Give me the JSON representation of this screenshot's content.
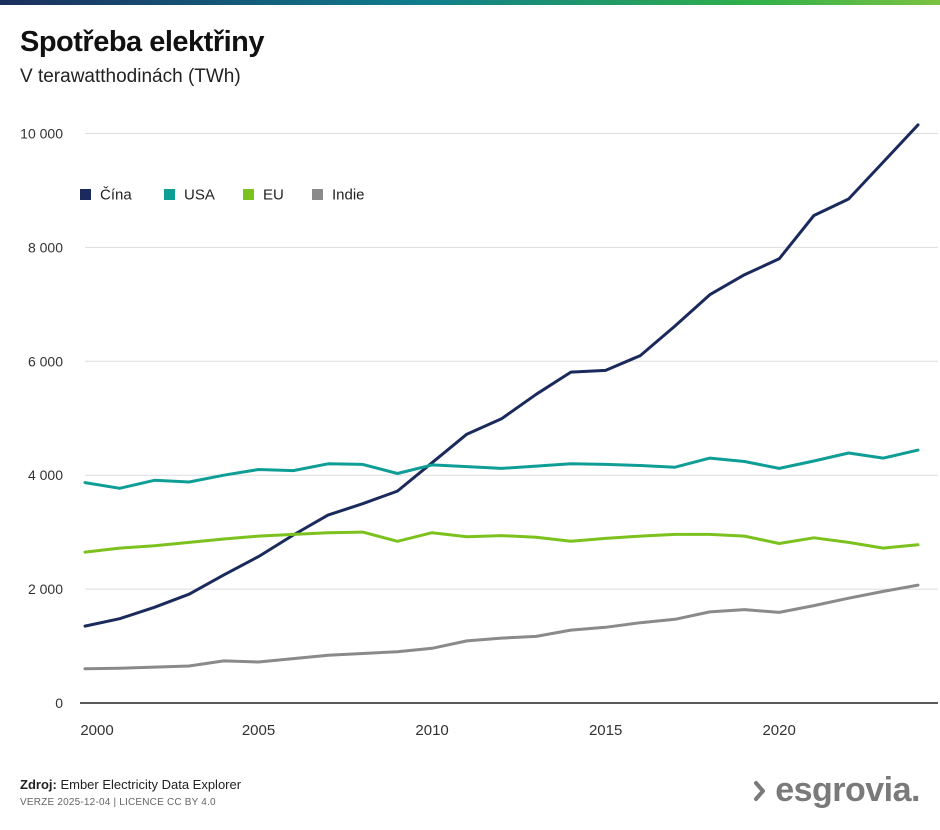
{
  "header": {
    "title": "Spotřeba elektřiny",
    "subtitle": "V terawatthodinách (TWh)"
  },
  "footer": {
    "source_label": "Zdroj:",
    "source_text": "Ember Electricity Data Explorer",
    "version": "VERZE 2025-12-04 | LICENCE CC BY 4.0",
    "brand": "esgrovia."
  },
  "colors": {
    "china": "#1b2a5c",
    "usa": "#0f9e96",
    "eu": "#7cc21e",
    "india": "#8a8a8a",
    "grid": "#dddddd",
    "axis": "#222222",
    "tick_text": "#333333"
  },
  "chart_data": {
    "type": "line",
    "title": "Spotřeba elektřiny",
    "ylabel": "V terawatthodinách (TWh)",
    "xlabel": "",
    "xlim": [
      2000,
      2024
    ],
    "ylim": [
      0,
      10500
    ],
    "x_ticks": [
      2000,
      2005,
      2010,
      2015,
      2020
    ],
    "x_tick_labels": [
      "2000",
      "2005",
      "2010",
      "2015",
      "2020"
    ],
    "y_ticks": [
      0,
      2000,
      4000,
      6000,
      8000,
      10000
    ],
    "y_tick_labels": [
      "0",
      "2 000",
      "4 000",
      "6 000",
      "8 000",
      "10 000"
    ],
    "legend_position": "top-left",
    "grid": true,
    "x": [
      2000,
      2001,
      2002,
      2003,
      2004,
      2005,
      2006,
      2007,
      2008,
      2009,
      2010,
      2011,
      2012,
      2013,
      2014,
      2015,
      2016,
      2017,
      2018,
      2019,
      2020,
      2021,
      2022,
      2023,
      2024
    ],
    "series": [
      {
        "name": "Čína",
        "key": "china",
        "values": [
          1350,
          1480,
          1680,
          1910,
          2250,
          2570,
          2950,
          3300,
          3500,
          3720,
          4220,
          4720,
          4990,
          5420,
          5810,
          5840,
          6100,
          6620,
          7170,
          7520,
          7800,
          8560,
          8850,
          9500,
          10150
        ]
      },
      {
        "name": "USA",
        "key": "usa",
        "values": [
          3870,
          3770,
          3910,
          3880,
          4000,
          4100,
          4080,
          4200,
          4190,
          4030,
          4180,
          4150,
          4120,
          4160,
          4200,
          4190,
          4170,
          4140,
          4300,
          4240,
          4120,
          4250,
          4390,
          4300,
          4440
        ]
      },
      {
        "name": "EU",
        "key": "eu",
        "values": [
          2650,
          2720,
          2760,
          2820,
          2880,
          2930,
          2960,
          2990,
          3000,
          2840,
          2990,
          2920,
          2940,
          2910,
          2840,
          2890,
          2930,
          2960,
          2960,
          2930,
          2800,
          2900,
          2820,
          2720,
          2780
        ]
      },
      {
        "name": "Indie",
        "key": "india",
        "values": [
          600,
          610,
          630,
          650,
          740,
          720,
          780,
          840,
          870,
          900,
          960,
          1090,
          1140,
          1170,
          1280,
          1330,
          1410,
          1470,
          1600,
          1640,
          1590,
          1710,
          1840,
          1960,
          2070
        ]
      }
    ]
  }
}
